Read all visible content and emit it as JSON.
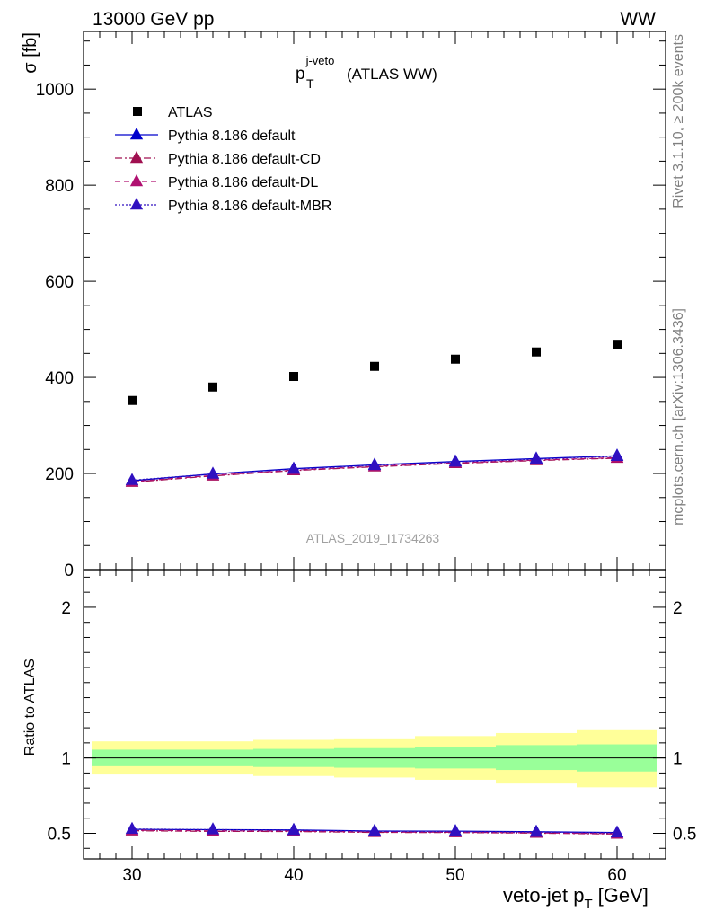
{
  "header": {
    "left": "13000 GeV pp",
    "right": "WW"
  },
  "side_labels": {
    "rivet": "Rivet 3.1.10, ≥ 200k events",
    "mcplots": "mcplots.cern.ch [arXiv:1306.3436]"
  },
  "plot_title": {
    "main": "p",
    "sub": "T",
    "sup": "j-veto",
    "suffix": "(ATLAS WW)"
  },
  "analysis_tag": "ATLAS_2019_I1734263",
  "chart_data": [
    {
      "type": "scatter",
      "ylabel": "σ [fb]",
      "xlim": [
        27,
        63
      ],
      "ylim": [
        0,
        1120
      ],
      "yticks": [
        0,
        200,
        400,
        600,
        800,
        1000
      ],
      "x": [
        30,
        35,
        40,
        45,
        50,
        55,
        60
      ],
      "legend_placement": "top-left",
      "series": [
        {
          "name": "ATLAS",
          "marker": "square",
          "color": "#000000",
          "values": [
            352,
            380,
            402,
            423,
            438,
            453,
            469
          ]
        },
        {
          "name": "Pythia 8.186 default",
          "marker": "triangle",
          "line": "solid",
          "color": "#0000cc",
          "values": [
            185,
            199,
            210,
            218,
            225,
            231,
            237
          ]
        },
        {
          "name": "Pythia 8.186 default-CD",
          "marker": "triangle",
          "line": "dashdot",
          "color": "#a01050",
          "values": [
            182,
            195,
            206,
            214,
            221,
            227,
            232
          ]
        },
        {
          "name": "Pythia 8.186 default-DL",
          "marker": "triangle",
          "line": "dashed",
          "color": "#b01070",
          "values": [
            183,
            196,
            207,
            215,
            222,
            228,
            233
          ]
        },
        {
          "name": "Pythia 8.186 default-MBR",
          "marker": "triangle",
          "line": "dotted",
          "color": "#3010c0",
          "values": [
            186,
            199,
            209,
            217,
            224,
            230,
            236
          ]
        }
      ]
    },
    {
      "type": "line",
      "xlabel": "veto-jet p",
      "xlabel_sub": "T",
      "xlabel_unit": "[GeV]",
      "ylabel": "Ratio to ATLAS",
      "xlim": [
        27,
        63
      ],
      "ylim": [
        0.33,
        2.25
      ],
      "yticks": [
        0.5,
        1,
        2
      ],
      "xticks": [
        30,
        40,
        50,
        60
      ],
      "x": [
        30,
        35,
        40,
        45,
        50,
        55,
        60
      ],
      "bands": {
        "bin_edges": [
          27.5,
          32.5,
          37.5,
          42.5,
          47.5,
          52.5,
          57.5,
          62.5
        ],
        "inner": [
          [
            0.945,
            1.055
          ],
          [
            0.945,
            1.055
          ],
          [
            0.94,
            1.06
          ],
          [
            0.935,
            1.065
          ],
          [
            0.93,
            1.075
          ],
          [
            0.92,
            1.085
          ],
          [
            0.91,
            1.09
          ]
        ],
        "outer": [
          [
            0.89,
            1.11
          ],
          [
            0.89,
            1.11
          ],
          [
            0.88,
            1.12
          ],
          [
            0.87,
            1.13
          ],
          [
            0.855,
            1.145
          ],
          [
            0.83,
            1.165
          ],
          [
            0.805,
            1.19
          ]
        ],
        "inner_color": "#99ff99",
        "outer_color": "#ffff99"
      },
      "series": [
        {
          "name": "Pythia 8.186 default",
          "marker": "triangle",
          "line": "solid",
          "color": "#0000cc",
          "values": [
            0.526,
            0.524,
            0.522,
            0.515,
            0.514,
            0.51,
            0.505
          ]
        },
        {
          "name": "Pythia 8.186 default-CD",
          "marker": "triangle",
          "line": "dashdot",
          "color": "#a01050",
          "values": [
            0.517,
            0.513,
            0.512,
            0.506,
            0.505,
            0.501,
            0.495
          ]
        },
        {
          "name": "Pythia 8.186 default-DL",
          "marker": "triangle",
          "line": "dashed",
          "color": "#b01070",
          "values": [
            0.52,
            0.516,
            0.515,
            0.508,
            0.507,
            0.503,
            0.497
          ]
        },
        {
          "name": "Pythia 8.186 default-MBR",
          "marker": "triangle",
          "line": "dotted",
          "color": "#3010c0",
          "values": [
            0.528,
            0.524,
            0.52,
            0.513,
            0.511,
            0.508,
            0.503
          ]
        }
      ]
    }
  ]
}
